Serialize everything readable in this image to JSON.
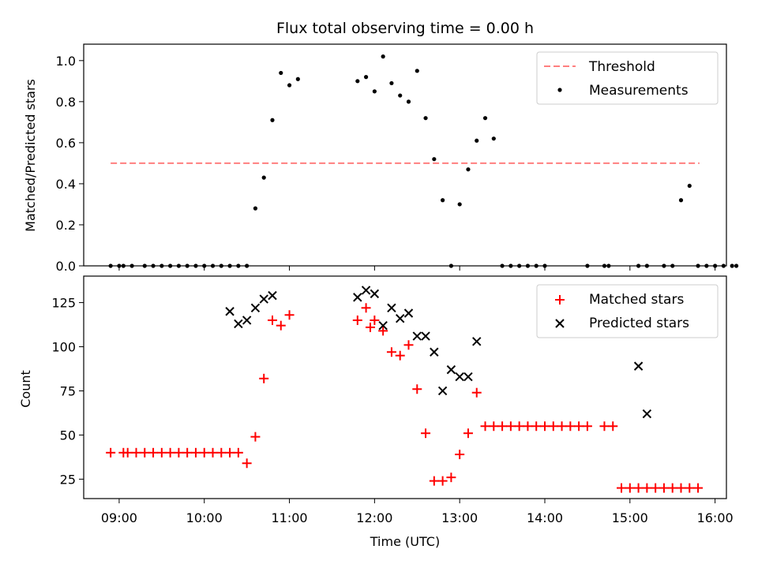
{
  "chart_data": [
    {
      "type": "scatter",
      "title": "Flux total observing time = 0.00 h",
      "xlabel": "",
      "ylabel": "Matched/Predicted stars",
      "xlim": [
        "08:35",
        "16:08"
      ],
      "ylim": [
        0,
        1.08
      ],
      "yticks": [
        "0.0",
        "0.2",
        "0.4",
        "0.6",
        "0.8",
        "1.0"
      ],
      "legend": {
        "placement": "top-right",
        "entries": [
          "Threshold",
          "Measurements"
        ]
      },
      "series": [
        {
          "name": "Threshold",
          "style": "dashed-line",
          "color": "#ff7f7f",
          "x": [
            "08:54",
            "15:49"
          ],
          "y": [
            0.5,
            0.5
          ]
        },
        {
          "name": "Measurements",
          "style": "dot",
          "color": "#000000",
          "x": [
            "08:54",
            "09:00",
            "09:03",
            "09:09",
            "09:18",
            "09:24",
            "09:30",
            "09:36",
            "09:42",
            "09:48",
            "09:54",
            "10:00",
            "10:06",
            "10:12",
            "10:18",
            "10:24",
            "10:30",
            "10:36",
            "10:42",
            "10:48",
            "10:54",
            "11:00",
            "11:06",
            "11:48",
            "11:54",
            "12:00",
            "12:06",
            "12:12",
            "12:18",
            "12:24",
            "12:30",
            "12:36",
            "12:42",
            "12:48",
            "12:54",
            "13:00",
            "13:06",
            "13:12",
            "13:18",
            "13:24",
            "13:30",
            "13:36",
            "13:42",
            "13:48",
            "13:54",
            "14:00",
            "14:30",
            "14:42",
            "14:45",
            "15:06",
            "15:12",
            "15:24",
            "15:30",
            "15:36",
            "15:42",
            "15:48",
            "15:54",
            "16:00",
            "16:06",
            "16:12",
            "16:15"
          ],
          "y": [
            0,
            0,
            0,
            0,
            0,
            0,
            0,
            0,
            0,
            0,
            0,
            0,
            0,
            0,
            0,
            0,
            0,
            0.28,
            0.43,
            0.71,
            0.94,
            0.88,
            0.91,
            0.9,
            0.92,
            0.85,
            1.02,
            0.89,
            0.83,
            0.8,
            0.95,
            0.72,
            0.52,
            0.32,
            0,
            0.3,
            0.47,
            0.61,
            0.72,
            0.62,
            0,
            0,
            0,
            0,
            0,
            0,
            0,
            0,
            0,
            0,
            0,
            0,
            0,
            0.32,
            0.39,
            0,
            0,
            0,
            0,
            0,
            0
          ]
        }
      ]
    },
    {
      "type": "scatter",
      "title": "",
      "xlabel": "Time (UTC)",
      "ylabel": "Count",
      "xlim": [
        "08:35",
        "16:08"
      ],
      "ylim": [
        14,
        140
      ],
      "xticks": [
        "09:00",
        "10:00",
        "11:00",
        "12:00",
        "13:00",
        "14:00",
        "15:00",
        "16:00"
      ],
      "yticks": [
        "25",
        "50",
        "75",
        "100",
        "125"
      ],
      "legend": {
        "placement": "top-right",
        "entries": [
          "Matched stars",
          "Predicted stars"
        ]
      },
      "series": [
        {
          "name": "Matched stars",
          "style": "plus",
          "color": "#ff0000",
          "x": [
            "08:54",
            "09:03",
            "09:06",
            "09:12",
            "09:18",
            "09:24",
            "09:30",
            "09:36",
            "09:42",
            "09:48",
            "09:54",
            "10:00",
            "10:06",
            "10:12",
            "10:18",
            "10:24",
            "10:30",
            "10:36",
            "10:42",
            "10:48",
            "10:54",
            "11:00",
            "11:48",
            "11:54",
            "11:57",
            "12:00",
            "12:06",
            "12:12",
            "12:18",
            "12:24",
            "12:30",
            "12:36",
            "12:42",
            "12:48",
            "12:54",
            "13:00",
            "13:06",
            "13:12",
            "13:18",
            "13:24",
            "13:30",
            "13:36",
            "13:42",
            "13:48",
            "13:54",
            "14:00",
            "14:06",
            "14:12",
            "14:18",
            "14:24",
            "14:30",
            "14:42",
            "14:48",
            "14:54",
            "15:00",
            "15:06",
            "15:12",
            "15:18",
            "15:24",
            "15:30",
            "15:36",
            "15:42",
            "15:48"
          ],
          "y": [
            40,
            40,
            40,
            40,
            40,
            40,
            40,
            40,
            40,
            40,
            40,
            40,
            40,
            40,
            40,
            40,
            34,
            49,
            82,
            115,
            112,
            118,
            115,
            122,
            111,
            115,
            109,
            97,
            95,
            101,
            76,
            51,
            24,
            24,
            26,
            39,
            51,
            74,
            55,
            55,
            55,
            55,
            55,
            55,
            55,
            55,
            55,
            55,
            55,
            55,
            55,
            55,
            55,
            20,
            20,
            20,
            20,
            20,
            20,
            20,
            20,
            20,
            20
          ]
        },
        {
          "name": "Predicted stars",
          "style": "x",
          "color": "#000000",
          "x": [
            "10:18",
            "10:24",
            "10:30",
            "10:36",
            "10:42",
            "10:48",
            "11:48",
            "11:54",
            "12:00",
            "12:06",
            "12:12",
            "12:18",
            "12:24",
            "12:30",
            "12:36",
            "12:42",
            "12:48",
            "12:54",
            "13:00",
            "13:06",
            "13:12",
            "15:06",
            "15:12"
          ],
          "y": [
            120,
            113,
            115,
            122,
            127,
            129,
            128,
            132,
            130,
            112,
            122,
            116,
            119,
            106,
            106,
            97,
            75,
            87,
            83,
            83,
            103,
            89,
            62
          ]
        }
      ]
    }
  ]
}
